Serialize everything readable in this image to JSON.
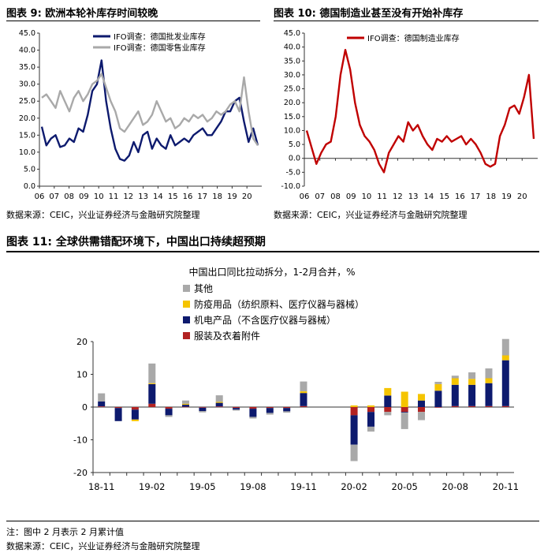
{
  "fig9": {
    "title": "图表 9:  欧洲本轮补库存时间较晚",
    "source": "数据来源：CEIC，兴业证券经济与金融研究院整理"
  },
  "fig10": {
    "title": "图表 10:  德国制造业甚至没有开始补库存",
    "source": "数据来源：CEIC，兴业证券经济与金融研究院整理"
  },
  "fig11": {
    "title": "图表 11:  全球供需错配环境下，中国出口持续超预期",
    "note": "注：图中 2 月表示 2 月累计值",
    "source": "数据来源：CEIC，兴业证券经济与金融研究院整理"
  },
  "colors": {
    "navy": "#0d1a6e",
    "gray": "#a9a9a9",
    "red": "#c00000",
    "yellow": "#f5c400",
    "darkred": "#b22222"
  },
  "chart_data": [
    {
      "type": "line",
      "xlabels": [
        "06",
        "07",
        "08",
        "09",
        "10",
        "11",
        "12",
        "13",
        "14",
        "15",
        "16",
        "17",
        "18",
        "19",
        "20"
      ],
      "ylim": [
        0,
        45
      ],
      "yticks": [
        "0.0",
        "5.0",
        "10.0",
        "15.0",
        "20.0",
        "25.0",
        "30.0",
        "35.0",
        "40.0",
        "45.0"
      ],
      "series": [
        {
          "name": "IFO调查：德国批发业库存",
          "color": "#0d1a6e",
          "values": [
            17.5,
            12,
            14,
            15,
            11.5,
            12,
            14,
            13,
            17,
            16,
            21,
            28,
            30,
            37,
            25,
            17,
            11,
            8,
            7.5,
            9,
            13,
            10,
            15,
            16,
            11,
            14,
            12,
            11,
            15,
            12,
            13,
            14,
            13,
            15,
            16,
            17,
            15,
            15,
            17,
            19,
            22,
            22,
            25,
            26,
            19,
            13,
            17,
            12
          ]
        },
        {
          "name": "IFO调查：德国零售业库存",
          "color": "#a9a9a9",
          "values": [
            26,
            27,
            25,
            23,
            28,
            25,
            22,
            26,
            28,
            25,
            27,
            30,
            31,
            33,
            29,
            25,
            22,
            17,
            16,
            18,
            20,
            22,
            18,
            19,
            21,
            25,
            22,
            19,
            20,
            17,
            18,
            20,
            19,
            21,
            20,
            21,
            19,
            20,
            22,
            21,
            22,
            24,
            25,
            22,
            32,
            22,
            14,
            12
          ]
        }
      ]
    },
    {
      "type": "line",
      "xlabels": [
        "06",
        "07",
        "08",
        "09",
        "10",
        "11",
        "12",
        "13",
        "14",
        "15",
        "16",
        "17",
        "18",
        "19",
        "20"
      ],
      "ylim": [
        -10,
        45
      ],
      "yticks": [
        "-10.0",
        "-5.0",
        "0.0",
        "5.0",
        "10.0",
        "15.0",
        "20.0",
        "25.0",
        "30.0",
        "35.0",
        "40.0",
        "45.0"
      ],
      "series": [
        {
          "name": "IFO调查：德国制造业库存",
          "color": "#c00000",
          "values": [
            10,
            4,
            -2,
            2,
            5,
            6,
            15,
            30,
            39,
            32,
            20,
            12,
            8,
            6,
            3,
            -2,
            -5,
            2,
            5,
            8,
            6,
            13,
            10,
            12,
            8,
            5,
            3,
            7,
            6,
            8,
            6,
            7,
            8,
            5,
            7,
            5,
            2,
            -2,
            -3,
            -2,
            8,
            12,
            18,
            19,
            16,
            22,
            30,
            7
          ]
        }
      ]
    },
    {
      "type": "bar",
      "title": "中国出口同比拉动拆分，1-2月合并，%",
      "categories": [
        "18-11",
        "18-12",
        "19-01",
        "19-02",
        "19-03",
        "19-04",
        "19-05",
        "19-06",
        "19-07",
        "19-08",
        "19-09",
        "19-10",
        "19-11",
        "19-12",
        "20-01",
        "20-02",
        "20-03",
        "20-04",
        "20-05",
        "20-06",
        "20-07",
        "20-08",
        "20-09",
        "20-10",
        "20-11"
      ],
      "xticklabels": [
        "18-11",
        "19-02",
        "19-05",
        "19-08",
        "19-11",
        "20-02",
        "20-05",
        "20-08",
        "20-11"
      ],
      "ylim": [
        -20,
        20
      ],
      "yticks": [
        "-20",
        "-10",
        "0",
        "10",
        "20"
      ],
      "stacked": true,
      "series": [
        {
          "name": "其他",
          "color": "#a9a9a9",
          "values": [
            2.5,
            0,
            0.3,
            6.0,
            -0.5,
            1.0,
            -0.4,
            2.0,
            -0.3,
            -0.5,
            -0.5,
            -0.4,
            3.0,
            null,
            null,
            -5.0,
            -1.5,
            -1.0,
            -5.0,
            -2.5,
            0.7,
            0.8,
            2.0,
            3.0,
            5.0
          ]
        },
        {
          "name": "防疫用品（纺织原料、医疗仪器与器械）",
          "color": "#f5c400",
          "values": [
            0,
            0,
            -0.5,
            0.3,
            0,
            0.3,
            0,
            0.3,
            0,
            0,
            0,
            0,
            0.5,
            null,
            null,
            0.5,
            0.5,
            2.3,
            4.7,
            2.0,
            2.0,
            2.0,
            1.8,
            1.5,
            1.5
          ]
        },
        {
          "name": "机电产品（不含医疗仪器与器械）",
          "color": "#0d1a6e",
          "values": [
            1.5,
            -4.0,
            -3.0,
            6.0,
            -2.0,
            0.6,
            -1.0,
            1.1,
            -0.5,
            -2.5,
            -1.5,
            -1.0,
            4.0,
            null,
            null,
            -9.0,
            -4.5,
            3.5,
            -0.2,
            2.0,
            5.0,
            6.5,
            6.5,
            7.0,
            14.0
          ]
        },
        {
          "name": "服装及衣着附件",
          "color": "#b22222",
          "values": [
            0.2,
            -0.3,
            -0.8,
            1.0,
            -0.5,
            0.1,
            -0.2,
            0.2,
            -0.3,
            -0.5,
            -0.3,
            -0.3,
            0.3,
            null,
            null,
            -2.5,
            -1.5,
            -1.5,
            -1.5,
            -1.5,
            -0.2,
            0.3,
            0.3,
            0.3,
            0.3
          ]
        }
      ]
    }
  ]
}
